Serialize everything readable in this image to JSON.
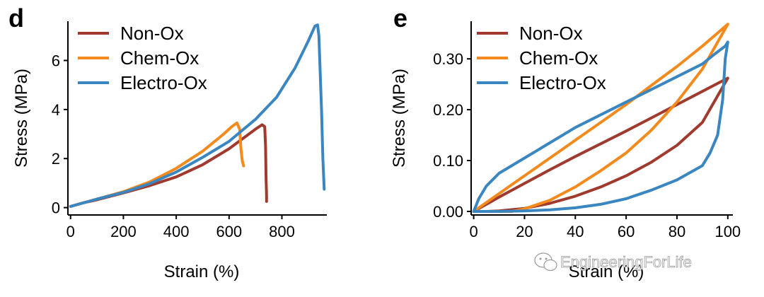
{
  "watermark": "EngineeringForLife",
  "colors": {
    "Non-Ox": "#A03A2E",
    "Chem-Ox": "#F28A1E",
    "Electro-Ox": "#3A86C0"
  },
  "chart_data": [
    {
      "panel": "d",
      "type": "line",
      "xlabel": "Strain (%)",
      "ylabel": "Stress (MPa)",
      "xlim": [
        -10,
        970
      ],
      "ylim": [
        -0.3,
        7.6
      ],
      "xticks": [
        0,
        200,
        400,
        600,
        800
      ],
      "yticks": [
        0,
        2,
        4,
        6
      ],
      "legend_position": "top-left",
      "series": [
        {
          "name": "Non-Ox",
          "color": "#A03A2E",
          "x": [
            0,
            50,
            100,
            200,
            300,
            400,
            500,
            600,
            650,
            700,
            725,
            735,
            738,
            740,
            742,
            742
          ],
          "y": [
            0.05,
            0.2,
            0.32,
            0.6,
            0.9,
            1.25,
            1.75,
            2.4,
            2.8,
            3.2,
            3.38,
            3.3,
            2.5,
            1.2,
            0.5,
            0.25
          ]
        },
        {
          "name": "Chem-Ox",
          "color": "#F28A1E",
          "x": [
            0,
            50,
            100,
            200,
            300,
            400,
            500,
            580,
            610,
            630,
            640,
            645,
            650,
            655
          ],
          "y": [
            0.05,
            0.2,
            0.35,
            0.65,
            1.05,
            1.6,
            2.3,
            3.0,
            3.3,
            3.45,
            3.2,
            2.4,
            1.9,
            1.7
          ]
        },
        {
          "name": "Electro-Ox",
          "color": "#3A86C0",
          "x": [
            0,
            50,
            100,
            200,
            300,
            400,
            500,
            600,
            700,
            780,
            850,
            900,
            925,
            935,
            940,
            950,
            955,
            960
          ],
          "y": [
            0.05,
            0.2,
            0.35,
            0.62,
            0.98,
            1.45,
            2.05,
            2.7,
            3.6,
            4.5,
            5.7,
            6.8,
            7.4,
            7.45,
            7.0,
            4.0,
            2.0,
            0.75
          ]
        }
      ]
    },
    {
      "panel": "e",
      "type": "line",
      "xlabel": "Strain (%)",
      "ylabel": "Stress (MPa)",
      "xlim": [
        -1,
        102
      ],
      "ylim": [
        -0.007,
        0.374
      ],
      "xticks": [
        0,
        20,
        40,
        60,
        80,
        100
      ],
      "yticks": [
        0.0,
        0.1,
        0.2,
        0.3
      ],
      "ytick_labels": [
        "0.00",
        "0.10",
        "0.20",
        "0.30"
      ],
      "legend_position": "top-left",
      "series": [
        {
          "name": "Non-Ox",
          "color": "#A03A2E",
          "x": [
            0,
            10,
            20,
            30,
            40,
            50,
            60,
            70,
            80,
            90,
            100,
            90,
            80,
            70,
            60,
            50,
            40,
            30,
            20,
            10,
            5,
            0
          ],
          "y": [
            0.0,
            0.028,
            0.055,
            0.082,
            0.108,
            0.133,
            0.158,
            0.184,
            0.21,
            0.236,
            0.262,
            0.175,
            0.13,
            0.097,
            0.07,
            0.048,
            0.03,
            0.016,
            0.006,
            0.001,
            0.0,
            0.0
          ]
        },
        {
          "name": "Chem-Ox",
          "color": "#F28A1E",
          "x": [
            0,
            10,
            20,
            30,
            40,
            50,
            60,
            70,
            80,
            90,
            100,
            90,
            80,
            70,
            60,
            50,
            40,
            30,
            20,
            15,
            10,
            0
          ],
          "y": [
            0.0,
            0.035,
            0.07,
            0.105,
            0.14,
            0.175,
            0.21,
            0.248,
            0.285,
            0.325,
            0.368,
            0.28,
            0.215,
            0.16,
            0.115,
            0.08,
            0.048,
            0.022,
            0.005,
            0.0,
            0.0,
            0.0
          ]
        },
        {
          "name": "Electro-Ox",
          "color": "#3A86C0",
          "x": [
            0,
            2,
            5,
            10,
            20,
            30,
            40,
            50,
            60,
            70,
            80,
            90,
            95,
            99,
            100,
            99,
            98,
            96,
            93,
            90,
            80,
            70,
            60,
            50,
            40,
            30,
            20,
            10,
            5,
            0
          ],
          "y": [
            0.0,
            0.025,
            0.05,
            0.075,
            0.105,
            0.135,
            0.165,
            0.19,
            0.215,
            0.24,
            0.265,
            0.29,
            0.31,
            0.325,
            0.333,
            0.3,
            0.22,
            0.15,
            0.115,
            0.09,
            0.062,
            0.042,
            0.025,
            0.014,
            0.007,
            0.003,
            0.001,
            0.0,
            0.0,
            0.0
          ]
        }
      ]
    }
  ]
}
